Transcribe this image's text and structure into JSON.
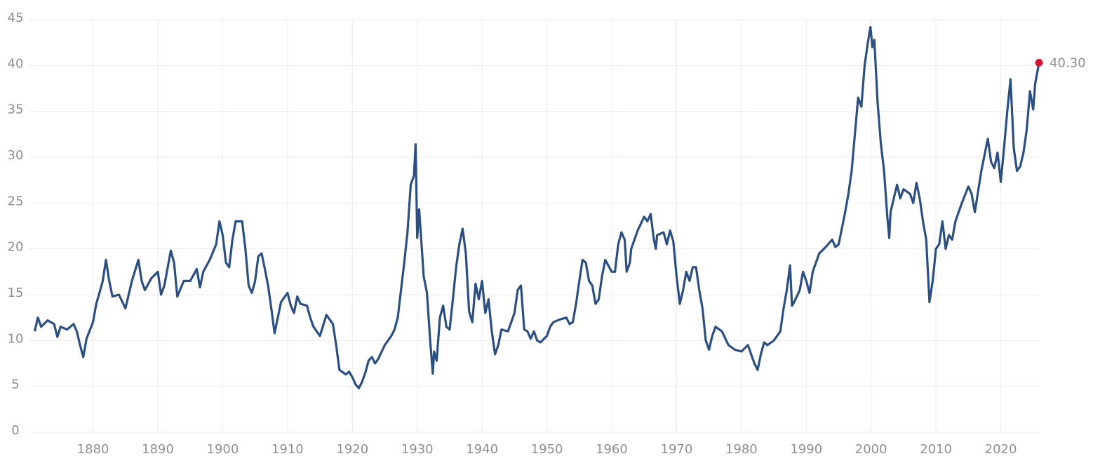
{
  "chart_data": {
    "type": "line",
    "x": [
      1871,
      1871.5,
      1872,
      1873,
      1874,
      1874.5,
      1875,
      1876,
      1877,
      1877.5,
      1878,
      1878.5,
      1879,
      1880,
      1880.5,
      1881,
      1881.5,
      1882,
      1882.5,
      1883,
      1884,
      1885,
      1886,
      1887,
      1887.5,
      1888,
      1889,
      1890,
      1890.5,
      1891,
      1892,
      1892.5,
      1893,
      1894,
      1895,
      1896,
      1896.5,
      1897,
      1898,
      1899,
      1899.5,
      1900,
      1900.5,
      1901,
      1901.5,
      1902,
      1903,
      1903.5,
      1904,
      1904.5,
      1905,
      1905.5,
      1906,
      1906.5,
      1907,
      1907.5,
      1908,
      1908.5,
      1909,
      1910,
      1910.5,
      1911,
      1911.5,
      1912,
      1913,
      1913.5,
      1914,
      1915,
      1916,
      1917,
      1917.5,
      1918,
      1919,
      1919.5,
      1920,
      1920.5,
      1921,
      1921.5,
      1922,
      1922.5,
      1923,
      1923.5,
      1924,
      1925,
      1926,
      1926.5,
      1927,
      1927.5,
      1928,
      1928.5,
      1929,
      1929.5,
      1929.75,
      1930,
      1930.3,
      1931,
      1931.5,
      1932,
      1932.4,
      1932.6,
      1933,
      1933.5,
      1934,
      1934.5,
      1935,
      1935.5,
      1936,
      1936.5,
      1937,
      1937.5,
      1938,
      1938.5,
      1939,
      1939.5,
      1940,
      1940.5,
      1941,
      1941.5,
      1942,
      1942.5,
      1943,
      1944,
      1944.5,
      1945,
      1945.5,
      1946,
      1946.5,
      1947,
      1947.5,
      1948,
      1948.5,
      1949,
      1950,
      1950.5,
      1951,
      1952,
      1953,
      1953.5,
      1954,
      1954.5,
      1955,
      1955.5,
      1956,
      1956.5,
      1957,
      1957.5,
      1958,
      1958.5,
      1959,
      1960,
      1960.5,
      1961,
      1961.5,
      1962,
      1962.3,
      1962.8,
      1963,
      1964,
      1965,
      1965.5,
      1966,
      1966.5,
      1966.8,
      1967,
      1968,
      1968.5,
      1969,
      1969.5,
      1970,
      1970.5,
      1971,
      1971.5,
      1972,
      1972.5,
      1973,
      1973.5,
      1974,
      1974.5,
      1975,
      1975.5,
      1976,
      1977,
      1978,
      1979,
      1980,
      1981,
      1981.5,
      1982,
      1982.5,
      1983,
      1983.5,
      1984,
      1985,
      1986,
      1986.5,
      1987,
      1987.5,
      1987.8,
      1988,
      1989,
      1989.5,
      1990,
      1990.5,
      1991,
      1992,
      1993,
      1994,
      1994.5,
      1995,
      1996,
      1996.5,
      1997,
      1997.5,
      1998,
      1998.5,
      1999,
      1999.5,
      1999.9,
      2000.2,
      2000.5,
      2001,
      2001.5,
      2002,
      2002.5,
      2002.8,
      2003,
      2004,
      2004.5,
      2005,
      2006,
      2006.5,
      2007,
      2007.5,
      2008,
      2008.5,
      2009,
      2009.5,
      2010,
      2010.5,
      2011,
      2011.5,
      2012,
      2012.5,
      2013,
      2014,
      2015,
      2015.5,
      2016,
      2017,
      2018,
      2018.5,
      2019,
      2019.5,
      2020,
      2020.5,
      2021,
      2021.5,
      2022,
      2022.5,
      2023,
      2023.5,
      2024,
      2024.5,
      2025,
      2025.3,
      2025.9
    ],
    "values": [
      11.0,
      12.5,
      11.5,
      12.2,
      11.8,
      10.4,
      11.5,
      11.2,
      11.8,
      11.0,
      9.5,
      8.2,
      10.2,
      12.0,
      14.0,
      15.2,
      16.5,
      18.8,
      16.5,
      14.8,
      15.0,
      13.5,
      16.5,
      18.8,
      16.5,
      15.5,
      16.8,
      17.5,
      15.0,
      16.0,
      19.8,
      18.5,
      14.8,
      16.5,
      16.5,
      17.8,
      15.8,
      17.5,
      18.8,
      20.5,
      23.0,
      21.5,
      18.5,
      18.0,
      21.0,
      23.0,
      23.0,
      20.0,
      16.0,
      15.2,
      16.5,
      19.2,
      19.5,
      17.8,
      16.0,
      13.5,
      10.8,
      12.5,
      14.2,
      15.2,
      13.8,
      13.0,
      14.8,
      14.0,
      13.8,
      12.5,
      11.5,
      10.5,
      12.8,
      11.8,
      9.5,
      6.8,
      6.3,
      6.6,
      6.0,
      5.2,
      4.8,
      5.5,
      6.5,
      7.8,
      8.2,
      7.5,
      8.0,
      9.5,
      10.5,
      11.2,
      12.5,
      15.5,
      18.5,
      21.8,
      27.0,
      28.0,
      31.4,
      21.2,
      24.3,
      17.0,
      15.2,
      10.0,
      6.4,
      8.8,
      7.8,
      12.5,
      13.8,
      11.5,
      11.2,
      14.5,
      18.0,
      20.5,
      22.2,
      19.5,
      13.2,
      12.0,
      16.2,
      14.5,
      16.5,
      13.0,
      14.5,
      11.0,
      8.5,
      9.5,
      11.2,
      11.0,
      12.0,
      13.0,
      15.5,
      16.0,
      11.2,
      11.0,
      10.2,
      11.0,
      10.0,
      9.8,
      10.5,
      11.5,
      12.0,
      12.3,
      12.5,
      11.8,
      12.0,
      14.0,
      16.5,
      18.8,
      18.5,
      16.5,
      16.0,
      14.0,
      14.5,
      17.0,
      18.8,
      17.5,
      17.5,
      20.5,
      21.8,
      21.0,
      17.5,
      18.5,
      20.0,
      22.0,
      23.5,
      23.0,
      23.8,
      21.0,
      20.0,
      21.5,
      21.8,
      20.5,
      22.0,
      20.8,
      17.0,
      14.0,
      15.5,
      17.5,
      16.5,
      18.0,
      18.0,
      15.5,
      13.5,
      10.0,
      9.0,
      10.5,
      11.5,
      11.0,
      9.5,
      9.0,
      8.8,
      9.5,
      8.5,
      7.5,
      6.8,
      8.5,
      9.8,
      9.5,
      10.0,
      11.0,
      13.5,
      15.5,
      18.2,
      13.8,
      14.0,
      15.5,
      17.5,
      16.5,
      15.2,
      17.5,
      19.5,
      20.2,
      21.0,
      20.2,
      20.5,
      24.0,
      26.0,
      28.5,
      32.5,
      36.5,
      35.5,
      40.0,
      42.5,
      44.2,
      42.0,
      42.8,
      36.0,
      31.5,
      28.5,
      23.5,
      21.2,
      24.0,
      27.0,
      25.5,
      26.5,
      26.0,
      25.0,
      27.2,
      25.5,
      23.0,
      21.0,
      14.2,
      16.5,
      20.0,
      20.5,
      23.0,
      20.0,
      21.5,
      21.0,
      23.0,
      25.0,
      26.8,
      26.0,
      24.0,
      28.5,
      32.0,
      29.5,
      28.8,
      30.5,
      27.3,
      31.0,
      35.0,
      38.5,
      31.0,
      28.5,
      29.0,
      30.5,
      33.0,
      37.2,
      35.2,
      38.0,
      40.3
    ],
    "color": "#2c4f83",
    "xlim": [
      1870.2,
      2026
    ],
    "ylim": [
      0,
      45
    ],
    "xticks": [
      1880,
      1890,
      1900,
      1910,
      1920,
      1930,
      1940,
      1950,
      1960,
      1970,
      1980,
      1990,
      2000,
      2010,
      2020
    ],
    "yticks": [
      0,
      5,
      10,
      15,
      20,
      25,
      30,
      35,
      40,
      45
    ],
    "grid": true,
    "annotation": {
      "x": 2025.9,
      "value": 40.3,
      "label": "40.30",
      "color": "#d3173a"
    }
  }
}
